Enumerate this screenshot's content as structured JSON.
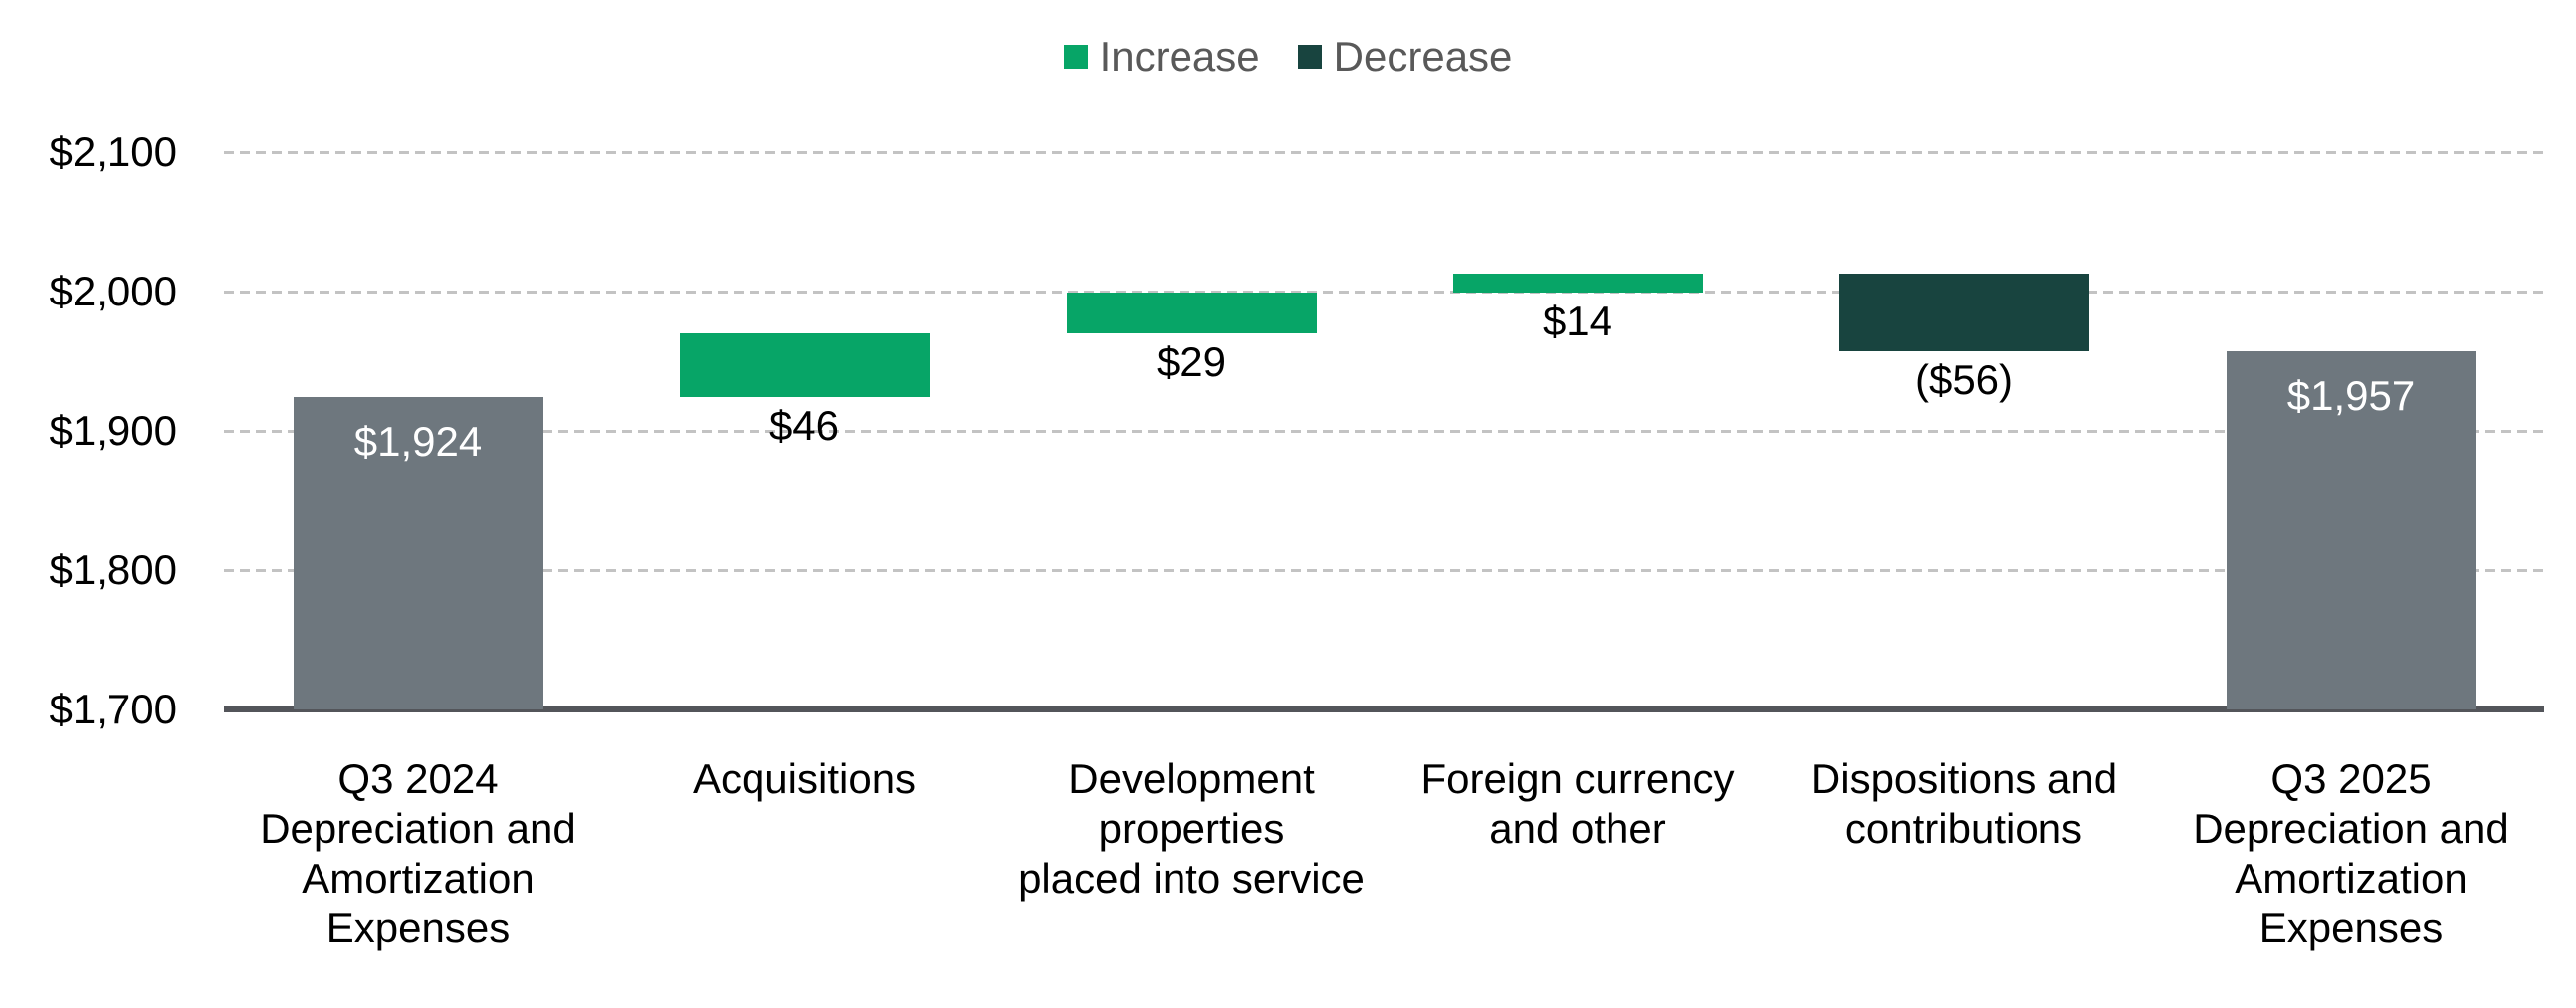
{
  "legend": {
    "items": [
      {
        "label": "Increase",
        "color": "#07a567"
      },
      {
        "label": "Decrease",
        "color": "#18443f"
      }
    ]
  },
  "chart_data": {
    "type": "waterfall",
    "title": "",
    "xlabel": "",
    "ylabel": "",
    "legend_position": "top-center",
    "grid": "dashed-horizontal",
    "categories": [
      "Q3 2024\nDepreciation and\nAmortization\nExpenses",
      "Acquisitions",
      "Development\nproperties\nplaced into service",
      "Foreign currency\nand other",
      "Dispositions and\ncontributions",
      "Q3 2025\nDepreciation and\nAmortization\nExpenses"
    ],
    "bars": [
      {
        "kind": "total",
        "start": 1700,
        "end": 1924,
        "value": 1924,
        "label": "$1,924",
        "label_pos": "inside"
      },
      {
        "kind": "increase",
        "start": 1924,
        "end": 1970,
        "value": 46,
        "label": "$46",
        "label_pos": "below"
      },
      {
        "kind": "increase",
        "start": 1970,
        "end": 1999,
        "value": 29,
        "label": "$29",
        "label_pos": "below"
      },
      {
        "kind": "increase",
        "start": 1999,
        "end": 2013,
        "value": 14,
        "label": "$14",
        "label_pos": "below"
      },
      {
        "kind": "decrease",
        "start": 2013,
        "end": 1957,
        "value": -56,
        "label": "($56)",
        "label_pos": "below"
      },
      {
        "kind": "total",
        "start": 1700,
        "end": 1957,
        "value": 1957,
        "label": "$1,957",
        "label_pos": "inside"
      }
    ],
    "y_axis": {
      "ticks": [
        "$2,100",
        "$2,000",
        "$1,900",
        "$1,800",
        "$1,700"
      ],
      "tick_values": [
        2100,
        2000,
        1900,
        1800,
        1700
      ],
      "min": 1700,
      "max": 2100
    },
    "colors": {
      "total": "#6e777e",
      "increase": "#07a567",
      "decrease": "#18443f",
      "axis_line": "#53555a",
      "gridline": "#c3c3c3",
      "legend_text": "#595959",
      "tick_text": "#000000",
      "inside_label_text": "#ffffff"
    }
  }
}
